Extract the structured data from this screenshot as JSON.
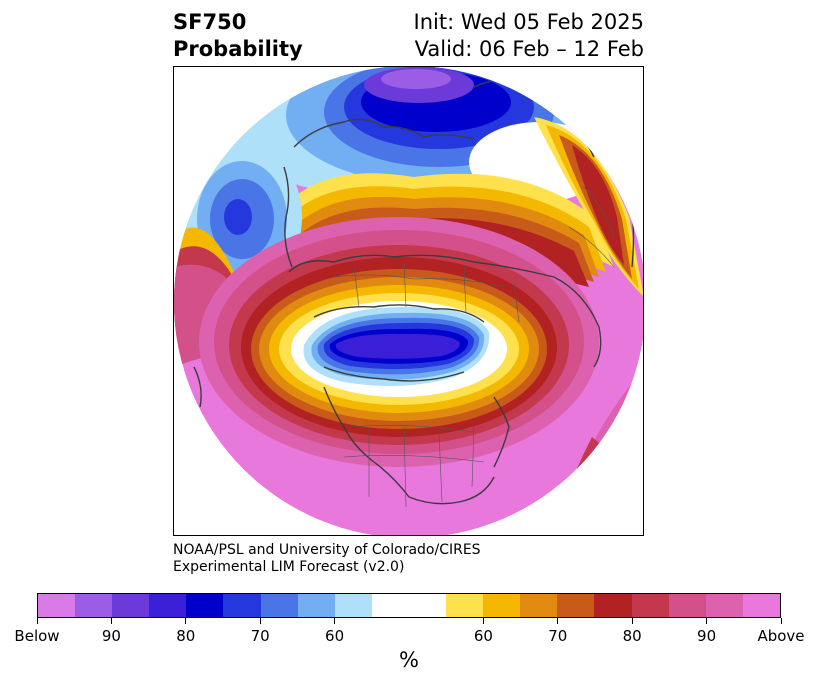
{
  "title": {
    "variable": "SF750",
    "subtitle": "Probability",
    "init": "Init: Wed 05 Feb 2025",
    "valid": "Valid: 06 Feb – 12 Feb"
  },
  "credits": {
    "line1": "NOAA/PSL and University of Colorado/CIRES",
    "line2": "Experimental LIM Forecast (v2.0)"
  },
  "colorbar": {
    "unit": "%",
    "colors": [
      "#d97ae6",
      "#9b5de5",
      "#6b3ad8",
      "#3a1ed8",
      "#0000cc",
      "#2438de",
      "#4a75e6",
      "#72aef2",
      "#aee0fa",
      "#ffffff",
      "#ffe04d",
      "#f5b800",
      "#e08a10",
      "#c85a1a",
      "#b22222",
      "#c4384e",
      "#d4508a",
      "#dc62b0",
      "#e878dc"
    ],
    "tick_labels": [
      "Below",
      "90",
      "80",
      "70",
      "60",
      "60",
      "70",
      "80",
      "90",
      "Above"
    ]
  },
  "map": {
    "projection": "north-polar-stereographic",
    "region": "North Pole",
    "above_color": "#e878dc",
    "below_color": "#2a18d0"
  }
}
